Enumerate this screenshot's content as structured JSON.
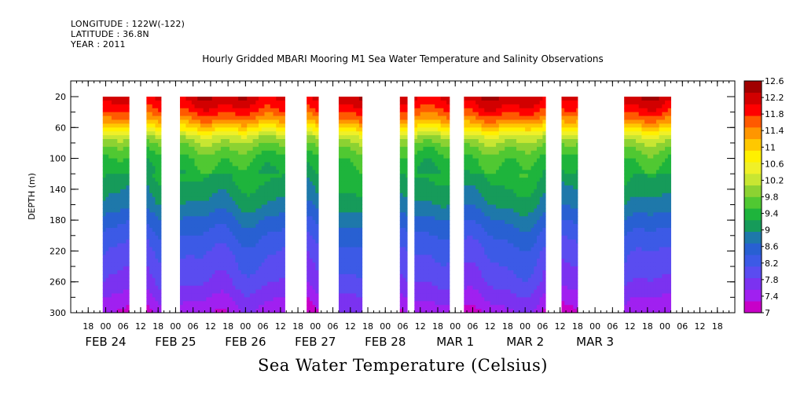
{
  "header": {
    "longitude": "LONGITUDE : 122W(-122)",
    "latitude": "LATITUDE : 36.8N",
    "year": "YEAR : 2011",
    "title": "Hourly Gridded MBARI Mooring M1 Sea Water Temperature and Salinity Observations"
  },
  "footer": {
    "variable_title": "Sea Water Temperature (Celsius)"
  },
  "colors": {
    "palette": [
      "#c800c8",
      "#a020f0",
      "#7b32f0",
      "#5a4cf0",
      "#3c5ae6",
      "#2860d2",
      "#1e78aa",
      "#169b5a",
      "#1eb43c",
      "#50c832",
      "#8cd232",
      "#c8e632",
      "#f0f028",
      "#fff000",
      "#ffc800",
      "#ff9600",
      "#ff5a00",
      "#ff0000",
      "#d20000",
      "#a00000"
    ]
  },
  "chart_data": {
    "type": "heatmap",
    "title": "Hourly Gridded MBARI Mooring M1 Sea Water Temperature and Salinity Observations",
    "xlabel": "",
    "ylabel": "DEPTH (m)",
    "x_start": "FEB 23 12:00",
    "xlim_hours": [
      0,
      228
    ],
    "ylim": [
      300,
      0
    ],
    "y_ticks": [
      "20",
      "60",
      "100",
      "140",
      "180",
      "220",
      "260",
      "300"
    ],
    "x_hour_ticks": [
      {
        "h": 6,
        "label": "18"
      },
      {
        "h": 12,
        "label": "00"
      },
      {
        "h": 18,
        "label": "06"
      },
      {
        "h": 24,
        "label": "12"
      },
      {
        "h": 30,
        "label": "18"
      },
      {
        "h": 36,
        "label": "00"
      },
      {
        "h": 42,
        "label": "06"
      },
      {
        "h": 48,
        "label": "12"
      },
      {
        "h": 54,
        "label": "18"
      },
      {
        "h": 60,
        "label": "00"
      },
      {
        "h": 66,
        "label": "06"
      },
      {
        "h": 72,
        "label": "12"
      },
      {
        "h": 78,
        "label": "18"
      },
      {
        "h": 84,
        "label": "00"
      },
      {
        "h": 90,
        "label": "06"
      },
      {
        "h": 96,
        "label": "12"
      },
      {
        "h": 102,
        "label": "18"
      },
      {
        "h": 108,
        "label": "00"
      },
      {
        "h": 114,
        "label": "06"
      },
      {
        "h": 120,
        "label": "12"
      },
      {
        "h": 126,
        "label": "18"
      },
      {
        "h": 132,
        "label": "00"
      },
      {
        "h": 138,
        "label": "06"
      },
      {
        "h": 144,
        "label": "12"
      },
      {
        "h": 150,
        "label": "18"
      },
      {
        "h": 156,
        "label": "00"
      },
      {
        "h": 162,
        "label": "06"
      },
      {
        "h": 168,
        "label": "12"
      },
      {
        "h": 174,
        "label": "18"
      },
      {
        "h": 180,
        "label": "00"
      },
      {
        "h": 186,
        "label": "06"
      },
      {
        "h": 192,
        "label": "12"
      },
      {
        "h": 198,
        "label": "18"
      },
      {
        "h": 204,
        "label": "00"
      },
      {
        "h": 210,
        "label": "06"
      },
      {
        "h": 216,
        "label": "12"
      },
      {
        "h": 222,
        "label": "18"
      }
    ],
    "day_labels": [
      {
        "h": 12,
        "label": "FEB 24"
      },
      {
        "h": 36,
        "label": "FEB 25"
      },
      {
        "h": 60,
        "label": "FEB 26"
      },
      {
        "h": 84,
        "label": "FEB 27"
      },
      {
        "h": 108,
        "label": "FEB 28"
      },
      {
        "h": 132,
        "label": "MAR  1"
      },
      {
        "h": 156,
        "label": "MAR  2"
      },
      {
        "h": 180,
        "label": "MAR  3"
      }
    ],
    "data_segments_hours": [
      [
        11,
        20
      ],
      [
        26,
        31
      ],
      [
        37.5,
        73.5
      ],
      [
        81,
        85
      ],
      [
        92,
        100
      ],
      [
        113,
        115.5
      ],
      [
        118,
        130
      ],
      [
        135,
        163
      ],
      [
        168.5,
        174
      ],
      [
        190,
        206
      ]
    ],
    "depth_profile": [
      {
        "depth": 20,
        "temp": 12.2
      },
      {
        "depth": 35,
        "temp": 11.9
      },
      {
        "depth": 50,
        "temp": 11.4
      },
      {
        "depth": 62,
        "temp": 10.8
      },
      {
        "depth": 72,
        "temp": 10.2
      },
      {
        "depth": 85,
        "temp": 9.8
      },
      {
        "depth": 100,
        "temp": 9.5
      },
      {
        "depth": 120,
        "temp": 9.3
      },
      {
        "depth": 140,
        "temp": 9.1
      },
      {
        "depth": 160,
        "temp": 8.9
      },
      {
        "depth": 180,
        "temp": 8.6
      },
      {
        "depth": 200,
        "temp": 8.35
      },
      {
        "depth": 220,
        "temp": 8.15
      },
      {
        "depth": 240,
        "temp": 8.0
      },
      {
        "depth": 260,
        "temp": 7.85
      },
      {
        "depth": 280,
        "temp": 7.6
      },
      {
        "depth": 300,
        "temp": 7.35
      }
    ],
    "colorbar": {
      "min": 7,
      "max": 12.6,
      "step": 0.28,
      "labels": [
        "12.6",
        "12.2",
        "11.8",
        "11.4",
        "11",
        "10.6",
        "10.2",
        "9.8",
        "9.4",
        "9",
        "8.6",
        "8.2",
        "7.8",
        "7.4",
        "7"
      ]
    },
    "grid": false,
    "legend": "colorbar-right"
  }
}
